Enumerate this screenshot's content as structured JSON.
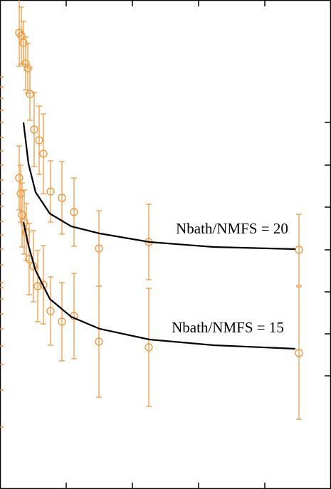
{
  "chart_data": {
    "type": "scatter",
    "xlim": [
      0,
      465
    ],
    "ylim": [
      0,
      687
    ],
    "xticks": [
      93,
      186,
      279,
      372
    ],
    "y2lim": [
      0,
      687
    ],
    "y2ticks": [
      515,
      455,
      396,
      336,
      277,
      218,
      159
    ],
    "yticks": [
      579,
      565,
      549,
      532,
      515,
      494,
      475,
      455,
      434,
      415,
      397,
      376,
      357,
      337,
      315,
      290,
      283,
      267,
      246,
      225,
      201,
      175,
      139,
      87
    ],
    "tick_color": "#f0922e",
    "series": [
      {
        "name": "Nbath/NMFS = 20",
        "color": "#f0922e",
        "x": [
          27,
          30,
          33,
          36,
          39,
          42,
          48,
          55,
          61,
          71,
          87,
          104,
          139,
          209,
          420
        ],
        "values": [
          641,
          637,
          627,
          598,
          591,
          555,
          505,
          490,
          471,
          418,
          409,
          389,
          338,
          347,
          336
        ],
        "errors": [
          47,
          40,
          30,
          37,
          35,
          37,
          52,
          48,
          56,
          43,
          51,
          48,
          53,
          53,
          50
        ]
      },
      {
        "name": "Nbath/NMFS = 15",
        "color": "#f0922e",
        "x": [
          27,
          29,
          31,
          34,
          37,
          41,
          47,
          53,
          61,
          71,
          87,
          104,
          139,
          209,
          420
        ],
        "values": [
          437,
          415,
          385,
          375,
          361,
          323,
          313,
          285,
          287,
          250,
          235,
          243,
          207,
          199,
          191
        ],
        "errors": [
          45,
          40,
          45,
          45,
          40,
          50,
          50,
          50,
          55,
          48,
          55,
          60,
          78,
          83,
          93
        ]
      }
    ],
    "fits": [
      {
        "color": "#000000",
        "x": [
          33,
          40,
          50,
          70,
          100,
          140,
          210,
          300,
          415
        ],
        "values": [
          515,
          457,
          417,
          387,
          369,
          359,
          347,
          340,
          337
        ]
      },
      {
        "color": "#000000",
        "x": [
          33,
          40,
          50,
          70,
          100,
          140,
          210,
          300,
          415
        ],
        "values": [
          375,
          342,
          307,
          267,
          242,
          225,
          210,
          202,
          197
        ]
      }
    ]
  }
}
